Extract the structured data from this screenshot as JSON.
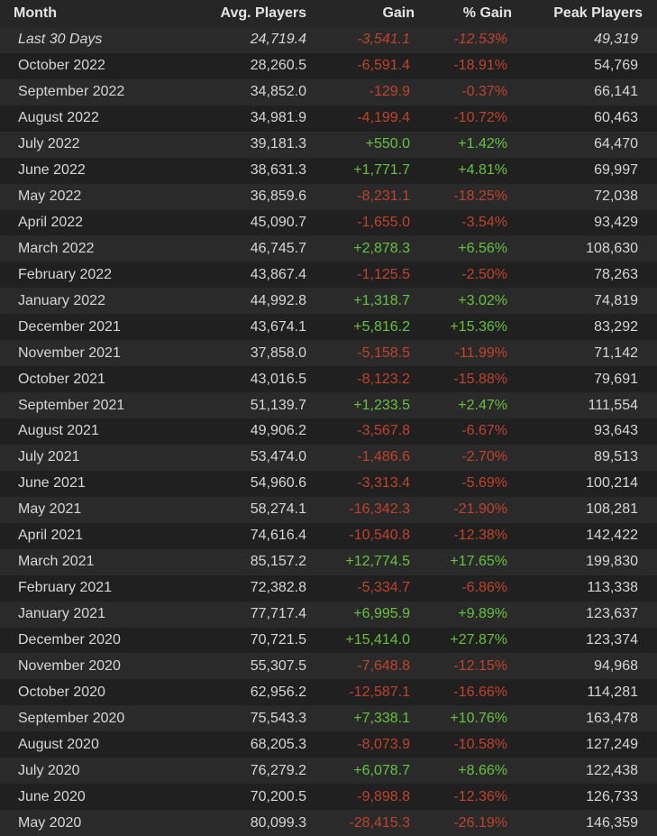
{
  "table": {
    "header": [
      "Month",
      "Avg. Players",
      "Gain",
      "% Gain",
      "Peak Players"
    ],
    "rows": [
      [
        "Last 30 Days",
        "24,719.4",
        "-3,541.1",
        "-12.53%",
        "49,319"
      ],
      [
        "October 2022",
        "28,260.5",
        "-6,591.4",
        "-18.91%",
        "54,769"
      ],
      [
        "September 2022",
        "34,852.0",
        "-129.9",
        "-0.37%",
        "66,141"
      ],
      [
        "August 2022",
        "34,981.9",
        "-4,199.4",
        "-10.72%",
        "60,463"
      ],
      [
        "July 2022",
        "39,181.3",
        "+550.0",
        "+1.42%",
        "64,470"
      ],
      [
        "June 2022",
        "38,631.3",
        "+1,771.7",
        "+4.81%",
        "69,997"
      ],
      [
        "May 2022",
        "36,859.6",
        "-8,231.1",
        "-18.25%",
        "72,038"
      ],
      [
        "April 2022",
        "45,090.7",
        "-1,655.0",
        "-3.54%",
        "93,429"
      ],
      [
        "March 2022",
        "46,745.7",
        "+2,878.3",
        "+6.56%",
        "108,630"
      ],
      [
        "February 2022",
        "43,867.4",
        "-1,125.5",
        "-2.50%",
        "78,263"
      ],
      [
        "January 2022",
        "44,992.8",
        "+1,318.7",
        "+3.02%",
        "74,819"
      ],
      [
        "December 2021",
        "43,674.1",
        "+5,816.2",
        "+15.36%",
        "83,292"
      ],
      [
        "November 2021",
        "37,858.0",
        "-5,158.5",
        "-11.99%",
        "71,142"
      ],
      [
        "October 2021",
        "43,016.5",
        "-8,123.2",
        "-15.88%",
        "79,691"
      ],
      [
        "September 2021",
        "51,139.7",
        "+1,233.5",
        "+2.47%",
        "111,554"
      ],
      [
        "August 2021",
        "49,906.2",
        "-3,567.8",
        "-6.67%",
        "93,643"
      ],
      [
        "July 2021",
        "53,474.0",
        "-1,486.6",
        "-2.70%",
        "89,513"
      ],
      [
        "June 2021",
        "54,960.6",
        "-3,313.4",
        "-5.69%",
        "100,214"
      ],
      [
        "May 2021",
        "58,274.1",
        "-16,342.3",
        "-21.90%",
        "108,281"
      ],
      [
        "April 2021",
        "74,616.4",
        "-10,540.8",
        "-12.38%",
        "142,422"
      ],
      [
        "March 2021",
        "85,157.2",
        "+12,774.5",
        "+17.65%",
        "199,830"
      ],
      [
        "February 2021",
        "72,382.8",
        "-5,334.7",
        "-6.86%",
        "113,338"
      ],
      [
        "January 2021",
        "77,717.4",
        "+6,995.9",
        "+9.89%",
        "123,637"
      ],
      [
        "December 2020",
        "70,721.5",
        "+15,414.0",
        "+27.87%",
        "123,374"
      ],
      [
        "November 2020",
        "55,307.5",
        "-7,648.8",
        "-12.15%",
        "94,968"
      ],
      [
        "October 2020",
        "62,956.2",
        "-12,587.1",
        "-16.66%",
        "114,281"
      ],
      [
        "September 2020",
        "75,543.3",
        "+7,338.1",
        "+10.76%",
        "163,478"
      ],
      [
        "August 2020",
        "68,205.3",
        "-8,073.9",
        "-10.58%",
        "127,249"
      ],
      [
        "July 2020",
        "76,279.2",
        "+6,078.7",
        "+8.66%",
        "122,438"
      ],
      [
        "June 2020",
        "70,200.5",
        "-9,898.8",
        "-12.36%",
        "126,733"
      ],
      [
        "May 2020",
        "80,099.3",
        "-28,415.3",
        "-26.19%",
        "146,359"
      ]
    ]
  }
}
